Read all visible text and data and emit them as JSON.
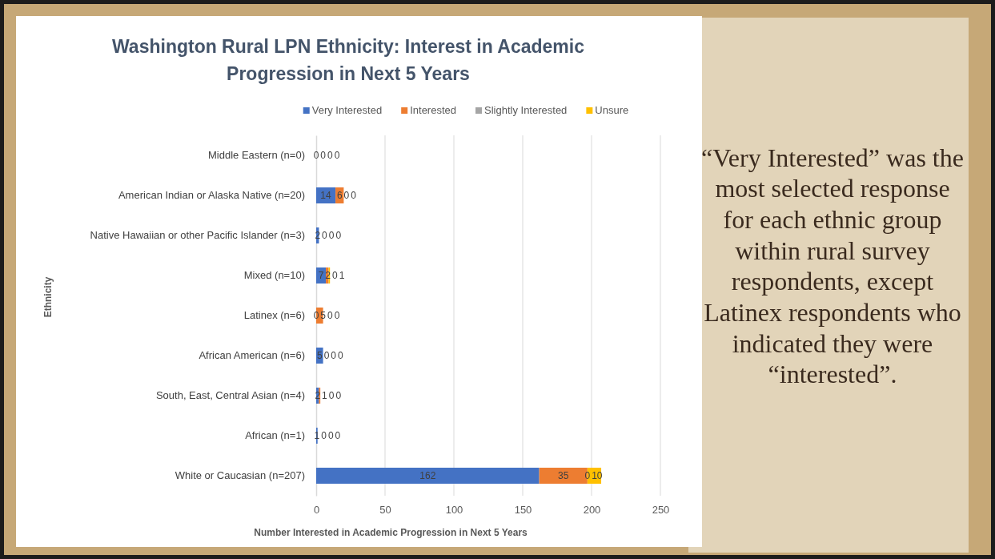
{
  "chart_data": {
    "type": "bar",
    "orientation": "horizontal",
    "stacked": true,
    "title": "Washington Rural LPN Ethnicity: Interest in Academic Progression in Next 5 Years",
    "xlabel": "Number Interested in Academic Progression in Next 5 Years",
    "ylabel": "Ethnicity",
    "categories": [
      "Middle Eastern (n=0)",
      "American Indian or Alaska Native (n=20)",
      "Native Hawaiian or other Pacific Islander (n=3)",
      "Mixed (n=10)",
      "Latinex (n=6)",
      "African American (n=6)",
      "South, East, Central Asian (n=4)",
      "African (n=1)",
      "White or Caucasian (n=207)"
    ],
    "series": [
      {
        "name": "Very Interested",
        "color": "#4472c4",
        "values": [
          0,
          14,
          2,
          7,
          0,
          5,
          2,
          1,
          162
        ]
      },
      {
        "name": "Interested",
        "color": "#ed7d31",
        "values": [
          0,
          6,
          0,
          2,
          5,
          0,
          1,
          0,
          35
        ]
      },
      {
        "name": "Slightly Interested",
        "color": "#a5a5a5",
        "values": [
          0,
          0,
          0,
          0,
          0,
          0,
          0,
          0,
          0
        ]
      },
      {
        "name": "Unsure",
        "color": "#ffc000",
        "values": [
          0,
          0,
          0,
          1,
          0,
          0,
          0,
          0,
          10
        ]
      }
    ],
    "xlim": [
      0,
      250
    ],
    "xticks": [
      0,
      50,
      100,
      150,
      200,
      250
    ],
    "grid": "x",
    "legend": "top",
    "data_labels": true,
    "annotations": [
      "“Very Interested” was the most selected response for each ethnic group within rural survey respondents, except Latinex respondents who indicated they were “interested”."
    ]
  }
}
